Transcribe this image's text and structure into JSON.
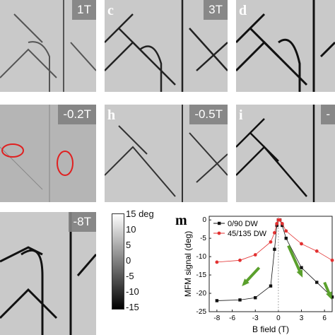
{
  "panels": [
    {
      "key": "b",
      "letter": "",
      "field": "1T"
    },
    {
      "key": "c",
      "letter": "c",
      "field": "3T"
    },
    {
      "key": "d",
      "letter": "d",
      "field": ""
    },
    {
      "key": "g",
      "letter": "",
      "field": "-0.2T"
    },
    {
      "key": "h",
      "letter": "h",
      "field": "-0.5T"
    },
    {
      "key": "i",
      "letter": "i",
      "field": "-"
    },
    {
      "key": "l",
      "letter": "",
      "field": "-8T"
    }
  ],
  "colorbar": {
    "ticks": [
      "15 deg",
      "10",
      "5",
      "0",
      "-5",
      "-10",
      "-15"
    ],
    "range": [
      -15,
      15
    ]
  },
  "chart_data": {
    "type": "line",
    "panel_letter": "m",
    "xlabel": "B field (T)",
    "ylabel": "MFM signal (deg)",
    "xlim": [
      -9,
      7
    ],
    "ylim": [
      -25,
      1
    ],
    "xticks": [
      -8,
      -6,
      -3,
      0,
      3,
      6
    ],
    "yticks": [
      0,
      -5,
      -10,
      -15,
      -20,
      -25
    ],
    "legend_position": "top-left",
    "series": [
      {
        "name": "0/90 DW",
        "color": "#111111",
        "marker": "square",
        "x": [
          -8,
          -5,
          -3,
          -1,
          -0.5,
          -0.2,
          0,
          0.2,
          0.5,
          1,
          3,
          5,
          7
        ],
        "y": [
          -22,
          -21.8,
          -21.2,
          -18,
          -8,
          -1.5,
          0,
          0,
          -1.5,
          -5,
          -13,
          -17,
          -21
        ]
      },
      {
        "name": "45/135 DW",
        "color": "#e23030",
        "marker": "circle",
        "x": [
          -8,
          -5,
          -3,
          -1,
          -0.5,
          -0.2,
          0,
          0.2,
          0.5,
          1,
          3,
          5,
          7
        ],
        "y": [
          -11.5,
          -11,
          -9.5,
          -6,
          -3.5,
          -1,
          0,
          0,
          -1,
          -3,
          -6.5,
          -8.5,
          -11
        ]
      }
    ],
    "arrows_color": "#5aa02c"
  }
}
